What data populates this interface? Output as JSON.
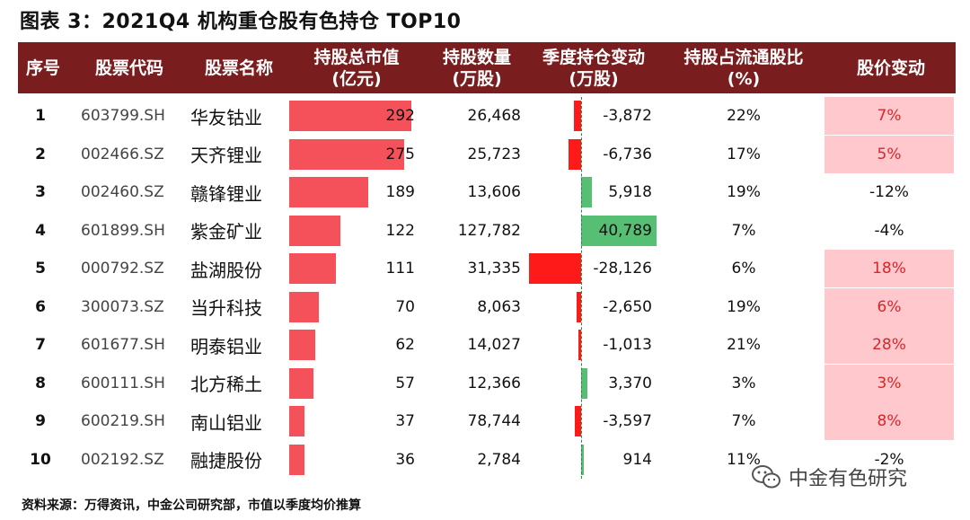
{
  "title": "图表 3：2021Q4 机构重仓股有色持仓 TOP10",
  "headers": {
    "idx": "序号",
    "code": "股票代码",
    "name": "股票名称",
    "cap_l1": "持股总市值",
    "cap_l2": "(亿元)",
    "shares_l1": "持股数量",
    "shares_l2": "(万股)",
    "chg_l1": "季度持仓变动",
    "chg_l2": "(万股)",
    "pct_l1": "持股占流通股比",
    "pct_l2": "(%)",
    "px": "股价变动"
  },
  "rows": [
    {
      "idx": "1",
      "code": "603799.SH",
      "name": "华友钴业",
      "cap": "292",
      "cap_val": 292,
      "shares": "26,468",
      "chg": "-3,872",
      "chg_val": -3872,
      "pct": "22%",
      "px": "7%",
      "px_highlight": true
    },
    {
      "idx": "2",
      "code": "002466.SZ",
      "name": "天齐锂业",
      "cap": "275",
      "cap_val": 275,
      "shares": "25,723",
      "chg": "-6,736",
      "chg_val": -6736,
      "pct": "17%",
      "px": "5%",
      "px_highlight": true
    },
    {
      "idx": "3",
      "code": "002460.SZ",
      "name": "赣锋锂业",
      "cap": "189",
      "cap_val": 189,
      "shares": "13,606",
      "chg": "5,918",
      "chg_val": 5918,
      "pct": "19%",
      "px": "-12%",
      "px_highlight": false
    },
    {
      "idx": "4",
      "code": "601899.SH",
      "name": "紫金矿业",
      "cap": "122",
      "cap_val": 122,
      "shares": "127,782",
      "chg": "40,789",
      "chg_val": 40789,
      "pct": "7%",
      "px": "-4%",
      "px_highlight": false
    },
    {
      "idx": "5",
      "code": "000792.SZ",
      "name": "盐湖股份",
      "cap": "111",
      "cap_val": 111,
      "shares": "31,335",
      "chg": "-28,126",
      "chg_val": -28126,
      "pct": "6%",
      "px": "18%",
      "px_highlight": true
    },
    {
      "idx": "6",
      "code": "300073.SZ",
      "name": "当升科技",
      "cap": "70",
      "cap_val": 70,
      "shares": "8,063",
      "chg": "-2,650",
      "chg_val": -2650,
      "pct": "19%",
      "px": "6%",
      "px_highlight": true
    },
    {
      "idx": "7",
      "code": "601677.SH",
      "name": "明泰铝业",
      "cap": "62",
      "cap_val": 62,
      "shares": "14,027",
      "chg": "-1,013",
      "chg_val": -1013,
      "pct": "21%",
      "px": "28%",
      "px_highlight": true
    },
    {
      "idx": "8",
      "code": "600111.SH",
      "name": "北方稀土",
      "cap": "57",
      "cap_val": 57,
      "shares": "12,366",
      "chg": "3,370",
      "chg_val": 3370,
      "pct": "3%",
      "px": "3%",
      "px_highlight": true
    },
    {
      "idx": "9",
      "code": "600219.SH",
      "name": "南山铝业",
      "cap": "37",
      "cap_val": 37,
      "shares": "78,744",
      "chg": "-3,597",
      "chg_val": -3597,
      "pct": "7%",
      "px": "8%",
      "px_highlight": true
    },
    {
      "idx": "10",
      "code": "002192.SZ",
      "name": "融捷股份",
      "cap": "36",
      "cap_val": 36,
      "shares": "2,784",
      "chg": "914",
      "chg_val": 914,
      "pct": "11%",
      "px": "-2%",
      "px_highlight": false
    }
  ],
  "watermark": "中金有色研究",
  "footer": "资料来源：万得资讯，中金公司研究部，市值以季度均价推算",
  "colors": {
    "header_bg": "#7a1d1f",
    "cap_bar": "#f4515a",
    "neg_bar": "#ff1a1a",
    "pos_bar": "#56bf73",
    "highlight": "#ffc8cc"
  }
}
